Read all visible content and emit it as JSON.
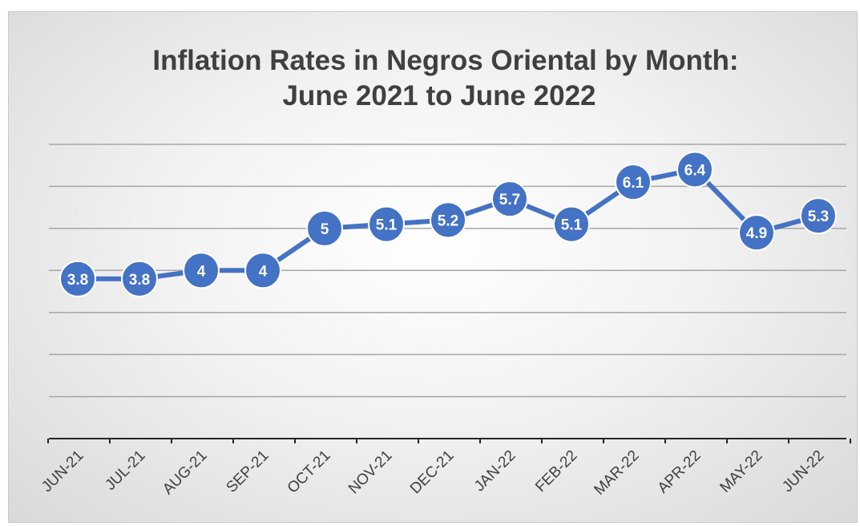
{
  "chart_data": {
    "type": "line",
    "title": "Inflation Rates in Negros Oriental by Month:",
    "subtitle": "June 2021 to June 2022",
    "xlabel": "",
    "ylabel": "",
    "categories": [
      "JUN-21",
      "JUL-21",
      "AUG-21",
      "SEP-21",
      "OCT-21",
      "NOV-21",
      "DEC-21",
      "JAN-22",
      "FEB-22",
      "MAR-22",
      "APR-22",
      "MAY-22",
      "JUN-22"
    ],
    "series": [
      {
        "values": [
          3.8,
          3.8,
          4,
          4,
          5,
          5.1,
          5.2,
          5.7,
          5.1,
          6.1,
          6.4,
          4.9,
          5.3
        ],
        "labels": [
          "3.8",
          "3.8",
          "4",
          "4",
          "5",
          "5.1",
          "5.2",
          "5.7",
          "5.1",
          "6.1",
          "6.4",
          "4.9",
          "5.3"
        ],
        "color": "#4472c4"
      }
    ],
    "ylim": [
      0,
      7
    ],
    "grid": true,
    "y_axis_visible": false,
    "legend": "none"
  }
}
